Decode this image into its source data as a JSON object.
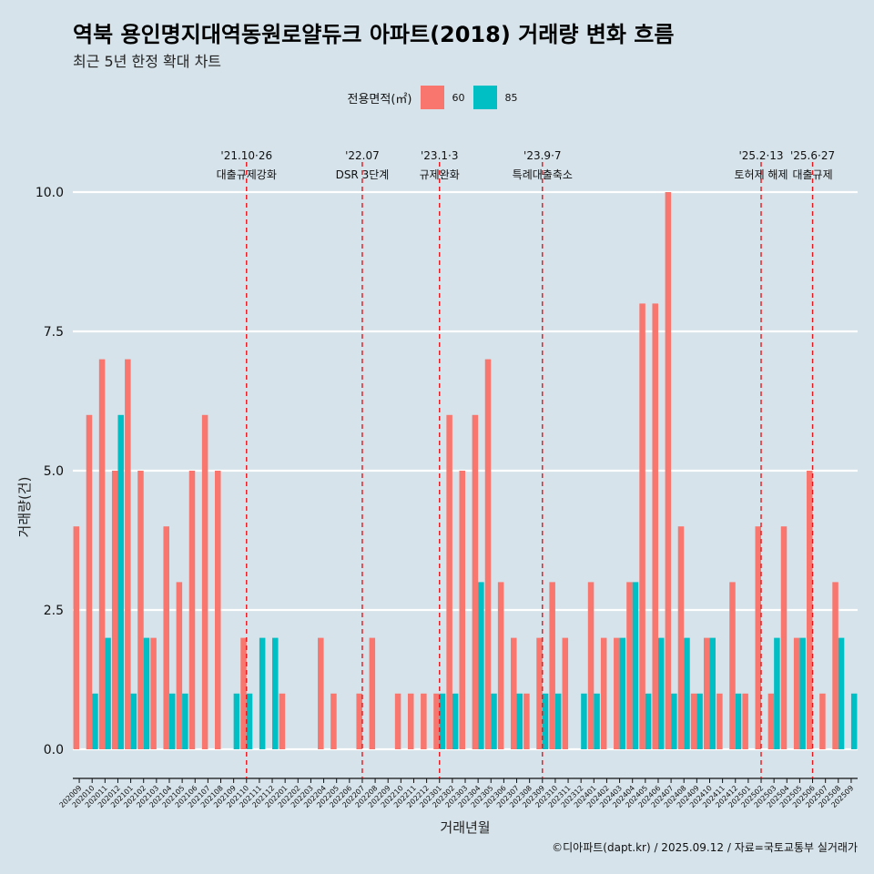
{
  "header": {
    "title": "역북 용인명지대역동원로얄듀크 아파트(2018) 거래량 변화 흐름",
    "subtitle": "최근 5년 한정 확대 차트"
  },
  "legend": {
    "title": "전용면적(㎡)",
    "items": [
      {
        "label": "60",
        "color": "#f8766d"
      },
      {
        "label": "85",
        "color": "#00bfc4"
      }
    ]
  },
  "caption": "©디아파트(dapt.kr) / 2025.09.12 / 자료=국토교통부 실거래가",
  "chart_data": {
    "type": "bar",
    "title": "역북 용인명지대역동원로얄듀크 아파트(2018) 거래량 변화 흐름",
    "subtitle": "최근 5년 한정 확대 차트",
    "xlabel": "거래년월",
    "ylabel": "거래량(건)",
    "ylim": [
      0,
      10.5
    ],
    "yticks": [
      "0.0",
      "2.5",
      "5.0",
      "7.5",
      "10.0"
    ],
    "categories": [
      "202009",
      "202010",
      "202011",
      "202012",
      "202101",
      "202102",
      "202103",
      "202104",
      "202105",
      "202106",
      "202107",
      "202108",
      "202109",
      "202110",
      "202111",
      "202112",
      "202201",
      "202202",
      "202203",
      "202204",
      "202205",
      "202206",
      "202207",
      "202208",
      "202209",
      "202210",
      "202211",
      "202212",
      "202301",
      "202302",
      "202303",
      "202304",
      "202305",
      "202306",
      "202307",
      "202308",
      "202309",
      "202310",
      "202311",
      "202312",
      "202401",
      "202402",
      "202403",
      "202404",
      "202405",
      "202406",
      "202407",
      "202408",
      "202409",
      "202410",
      "202411",
      "202412",
      "202501",
      "202502",
      "202503",
      "202504",
      "202505",
      "202506",
      "202507",
      "202508",
      "202509"
    ],
    "series": [
      {
        "name": "60",
        "color": "#f8766d",
        "values": [
          4,
          6,
          7,
          5,
          7,
          5,
          2,
          4,
          3,
          5,
          6,
          5,
          0,
          2,
          0,
          0,
          1,
          0,
          0,
          2,
          1,
          0,
          1,
          2,
          0,
          1,
          1,
          1,
          1,
          6,
          5,
          6,
          7,
          3,
          2,
          1,
          2,
          3,
          2,
          0,
          3,
          2,
          2,
          3,
          8,
          8,
          10,
          4,
          1,
          2,
          1,
          3,
          1,
          4,
          1,
          4,
          2,
          5,
          1,
          3,
          0
        ]
      },
      {
        "name": "85",
        "color": "#00bfc4",
        "values": [
          0,
          1,
          2,
          6,
          1,
          2,
          0,
          1,
          1,
          0,
          0,
          0,
          1,
          1,
          2,
          2,
          0,
          0,
          0,
          0,
          0,
          0,
          0,
          0,
          0,
          0,
          0,
          0,
          1,
          1,
          0,
          3,
          1,
          0,
          1,
          0,
          1,
          1,
          0,
          1,
          1,
          0,
          2,
          3,
          1,
          2,
          1,
          2,
          1,
          2,
          0,
          1,
          0,
          0,
          2,
          0,
          2,
          0,
          0,
          2,
          1
        ]
      }
    ],
    "annotations": [
      {
        "index": 13,
        "date": "'21.10·26",
        "label": "대출규제강화"
      },
      {
        "index": 22,
        "date": "'22.07",
        "label": "DSR 3단계"
      },
      {
        "index": 28,
        "date": "'23.1·3",
        "label": "규제완화"
      },
      {
        "index": 36,
        "date": "'23.9·7",
        "label": "특례대출축소"
      },
      {
        "index": 53,
        "date": "'25.2·13",
        "label": "토허제 해제"
      },
      {
        "index": 57,
        "date": "'25.6·27",
        "label": "대출규제"
      }
    ],
    "grid": true,
    "legend_position": "top"
  }
}
